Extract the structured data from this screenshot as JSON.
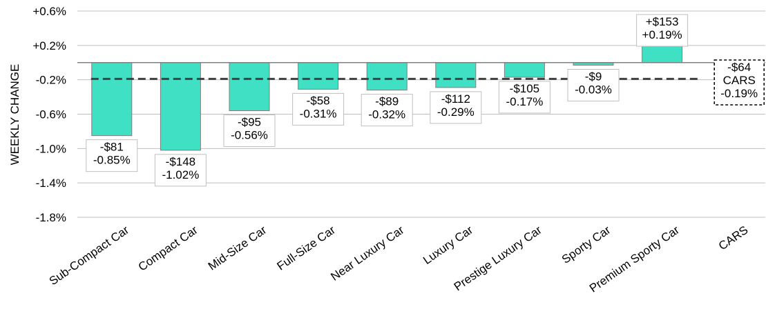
{
  "chart_data": {
    "type": "bar",
    "ylabel": "WEEKLY CHANGE",
    "ylim": [
      -1.8,
      0.6
    ],
    "yticks": [
      "+0.6%",
      "+0.2%",
      "-0.2%",
      "-0.6%",
      "-1.0%",
      "-1.4%",
      "-1.8%"
    ],
    "ytick_values": [
      0.6,
      0.2,
      -0.2,
      -0.6,
      -1.0,
      -1.4,
      -1.8
    ],
    "grid": true,
    "categories": [
      "Sub-Compact Car",
      "Compact Car",
      "Mid-Size Car",
      "Full-Size Car",
      "Near Luxury Car",
      "Luxury Car",
      "Prestige Luxury Car",
      "Sporty Car",
      "Premium Sporty Car",
      "CARS"
    ],
    "values": [
      -0.85,
      -1.02,
      -0.56,
      -0.31,
      -0.32,
      -0.29,
      -0.17,
      -0.03,
      0.19,
      -0.19
    ],
    "dollar_labels": [
      "-$81",
      "-$148",
      "-$95",
      "-$58",
      "-$89",
      "-$112",
      "-$105",
      "-$9",
      "+$153",
      "-$64"
    ],
    "pct_labels": [
      "-0.85%",
      "-1.02%",
      "-0.56%",
      "-0.31%",
      "-0.32%",
      "-0.29%",
      "-0.17%",
      "-0.03%",
      "+0.19%",
      "-0.19%"
    ],
    "total": {
      "category": "CARS",
      "value": -0.19,
      "dollar_label": "-$64",
      "name_label": "CARS",
      "pct_label": "-0.19%"
    },
    "colors": {
      "bar": "#40e0c4",
      "bar_stroke": "#7f7f7f",
      "grid": "#bfbfbf",
      "zero_line": "#7f7f7f",
      "avg_line": "#404040"
    }
  }
}
